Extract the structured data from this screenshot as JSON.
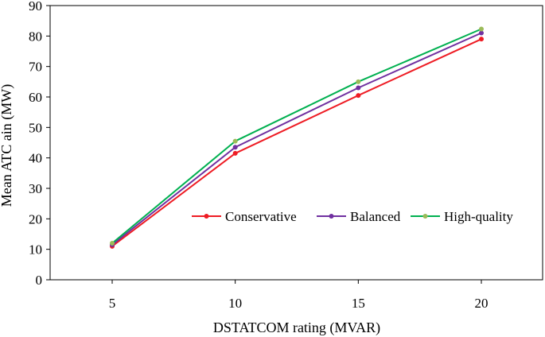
{
  "chart_data": {
    "type": "line",
    "title": "",
    "xlabel": "DSTATCOM rating (MVAR)",
    "ylabel": "Mean ATC ain (MW)",
    "categories": [
      "5",
      "10",
      "15",
      "20"
    ],
    "x": [
      5,
      10,
      15,
      20
    ],
    "ylim": [
      0,
      90
    ],
    "yticks": [
      0,
      10,
      20,
      30,
      40,
      50,
      60,
      70,
      80,
      90
    ],
    "grid": false,
    "legend_position": "center-right",
    "series": [
      {
        "name": "Conservative",
        "color": "#ee1c24",
        "values": [
          11.0,
          41.5,
          60.5,
          79.0
        ]
      },
      {
        "name": "Balanced",
        "color": "#7030a0",
        "values": [
          11.5,
          43.5,
          63.0,
          81.0
        ]
      },
      {
        "name": "High-quality",
        "color": "#00b050",
        "marker_color": "#9bbb59",
        "values": [
          12.0,
          45.5,
          65.0,
          82.3
        ]
      }
    ]
  }
}
